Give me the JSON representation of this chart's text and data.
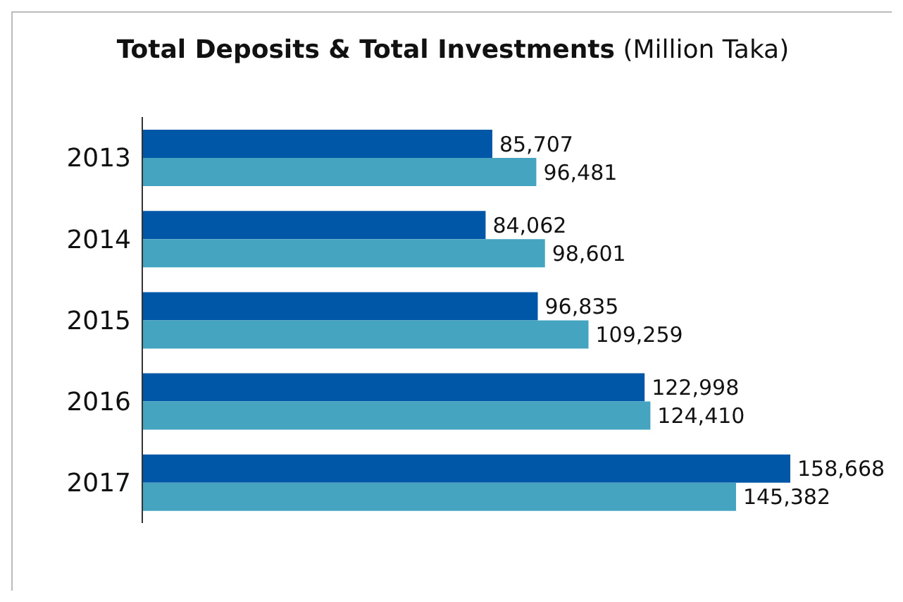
{
  "chart_data": {
    "type": "bar",
    "orientation": "horizontal",
    "title": "Total Deposits & Total Investments",
    "subtitle": "(Million Taka)",
    "categories": [
      "2013",
      "2014",
      "2015",
      "2016",
      "2017"
    ],
    "series": [
      {
        "color": "#0057a8",
        "values": [
          85707,
          84062,
          96835,
          122998,
          158668
        ],
        "value_labels": [
          "85,707",
          "84,062",
          "96,835",
          "122,998",
          "158,668"
        ]
      },
      {
        "color": "#45a5c0",
        "values": [
          96481,
          98601,
          109259,
          124410,
          145382
        ],
        "value_labels": [
          "96,481",
          "98,601",
          "109,259",
          "124,410",
          "145,382"
        ]
      }
    ],
    "grid": false,
    "legend": false
  }
}
